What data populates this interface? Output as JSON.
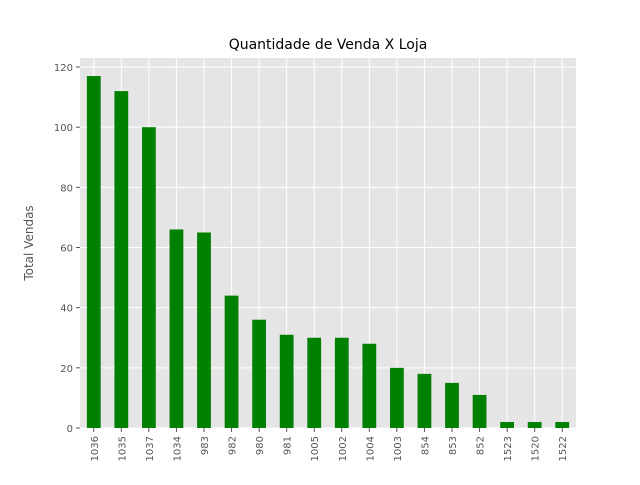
{
  "chart_data": {
    "type": "bar",
    "title": "Quantidade de Venda X Loja",
    "xlabel": "",
    "ylabel": "Total Vendas",
    "categories": [
      "1036",
      "1035",
      "1037",
      "1034",
      "983",
      "982",
      "980",
      "981",
      "1005",
      "1002",
      "1004",
      "1003",
      "854",
      "853",
      "852",
      "1523",
      "1520",
      "1522"
    ],
    "values": [
      117,
      112,
      100,
      66,
      65,
      44,
      36,
      31,
      30,
      30,
      28,
      20,
      18,
      15,
      11,
      2,
      2,
      2
    ],
    "ylim": [
      0,
      123
    ],
    "yticks": [
      0,
      20,
      40,
      60,
      80,
      100,
      120
    ],
    "grid": true,
    "style": "ggplot",
    "colors": {
      "bar": "#008000",
      "plot_background": "#e5e5e5",
      "grid": "#ffffff",
      "tick_label": "#555555",
      "title": "#000000"
    }
  }
}
